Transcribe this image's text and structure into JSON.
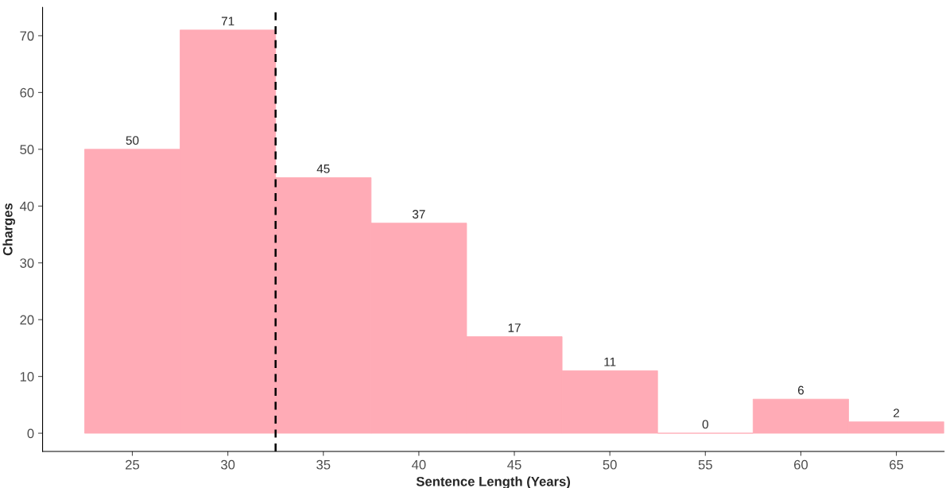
{
  "chart_data": {
    "type": "histogram",
    "xlabel": "Sentence Length (Years)",
    "ylabel": "Charges",
    "bins": [
      22.5,
      27.5,
      32.5,
      37.5,
      42.5,
      47.5,
      52.5,
      57.5,
      62.5,
      67.5
    ],
    "values": [
      50,
      71,
      45,
      37,
      17,
      11,
      0,
      6,
      2
    ],
    "color": "#ffabb6",
    "xlim": [
      20.3,
      67.5
    ],
    "ylim": [
      -3.2,
      75
    ],
    "xticks": [
      25,
      30,
      35,
      40,
      45,
      50,
      55,
      60,
      65
    ],
    "yticks": [
      0,
      10,
      20,
      30,
      40,
      50,
      60,
      70
    ],
    "ref_lines": [
      {
        "axis": "x",
        "value": 32.5,
        "color": "#000000",
        "line_style": "dashed"
      }
    ],
    "data_labels": true,
    "grid": false
  }
}
